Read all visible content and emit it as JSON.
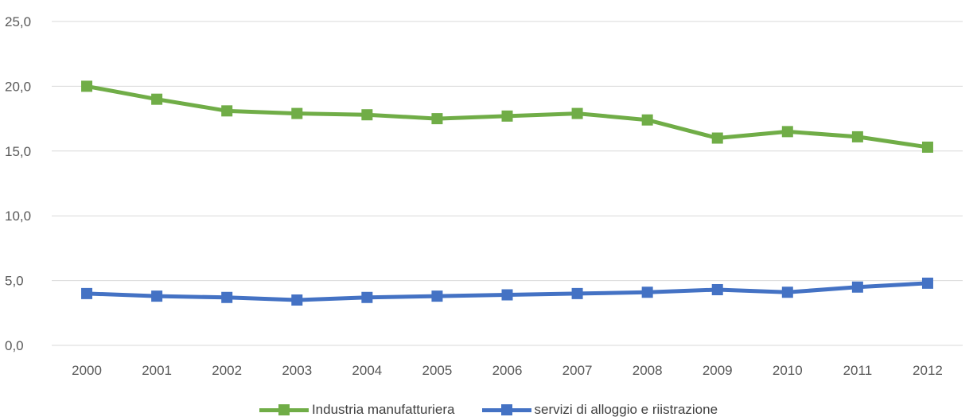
{
  "chart_data": {
    "type": "line",
    "categories": [
      "2000",
      "2001",
      "2002",
      "2003",
      "2004",
      "2005",
      "2006",
      "2007",
      "2008",
      "2009",
      "2010",
      "2011",
      "2012"
    ],
    "series": [
      {
        "name": "Industria manufatturiera",
        "color": "#70AD47",
        "values": [
          20.0,
          19.0,
          18.1,
          17.9,
          17.8,
          17.5,
          17.7,
          17.9,
          17.4,
          16.0,
          16.5,
          16.1,
          15.3
        ]
      },
      {
        "name": "servizi di alloggio e riistrazione",
        "color": "#4472C4",
        "values": [
          4.0,
          3.8,
          3.7,
          3.5,
          3.7,
          3.8,
          3.9,
          4.0,
          4.1,
          4.3,
          4.1,
          4.5,
          4.8
        ]
      }
    ],
    "y_ticks": [
      "0,0",
      "5,0",
      "10,0",
      "15,0",
      "20,0",
      "25,0"
    ],
    "ylim": [
      0,
      25
    ],
    "grid": true,
    "legend_position": "bottom"
  }
}
